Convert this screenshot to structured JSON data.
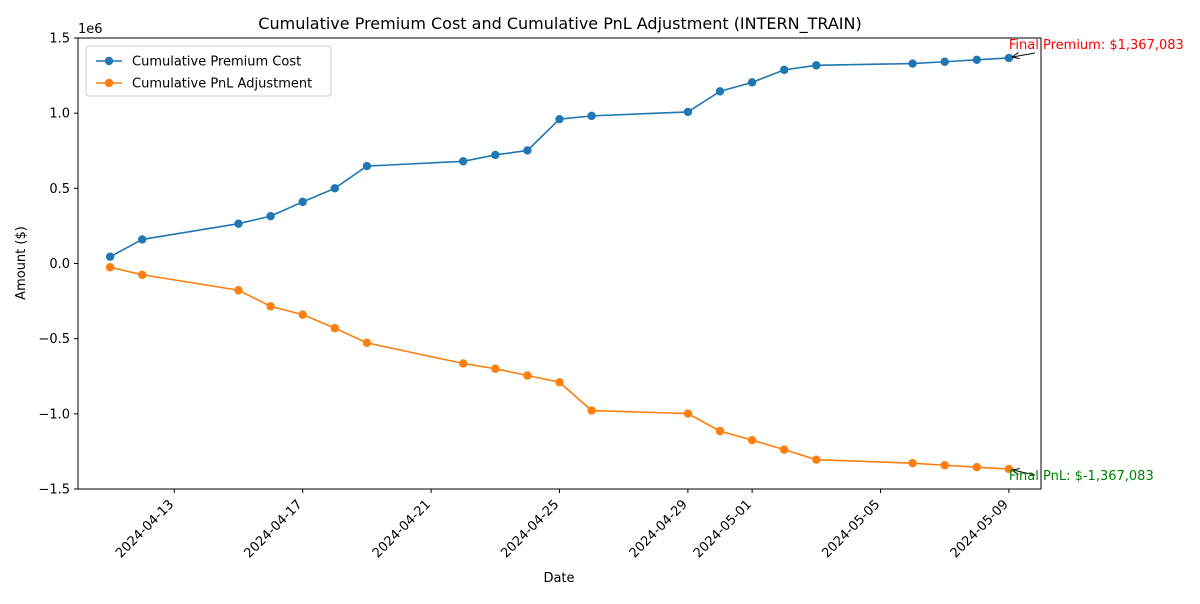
{
  "chart_data": {
    "type": "line",
    "title": "Cumulative Premium Cost and Cumulative PnL Adjustment (INTERN_TRAIN)",
    "xlabel": "Date",
    "ylabel": "Amount ($)",
    "y_scale_label": "1e6",
    "xlim": [
      "2024-04-10",
      "2024-05-10"
    ],
    "ylim": [
      -1500000,
      1500000
    ],
    "x_ticks": [
      "2024-04-13",
      "2024-04-17",
      "2024-04-21",
      "2024-04-25",
      "2024-04-29",
      "2024-05-01",
      "2024-05-05",
      "2024-05-09"
    ],
    "y_ticks": [
      {
        "value": -1500000,
        "label": "−1.5"
      },
      {
        "value": -1000000,
        "label": "−1.0"
      },
      {
        "value": -500000,
        "label": "−0.5"
      },
      {
        "value": 0,
        "label": "0.0"
      },
      {
        "value": 500000,
        "label": "0.5"
      },
      {
        "value": 1000000,
        "label": "1.0"
      },
      {
        "value": 1500000,
        "label": "1.5"
      }
    ],
    "grid": false,
    "legend_position": "top-left",
    "x": [
      "2024-04-11",
      "2024-04-12",
      "2024-04-15",
      "2024-04-16",
      "2024-04-17",
      "2024-04-18",
      "2024-04-19",
      "2024-04-22",
      "2024-04-23",
      "2024-04-24",
      "2024-04-25",
      "2024-04-26",
      "2024-04-29",
      "2024-04-30",
      "2024-05-01",
      "2024-05-02",
      "2024-05-03",
      "2024-05-06",
      "2024-05-07",
      "2024-05-08",
      "2024-05-09"
    ],
    "series": [
      {
        "name": "Cumulative Premium Cost",
        "color": "#1f77b4",
        "values": [
          45000,
          160000,
          265000,
          315000,
          410000,
          500000,
          648000,
          680000,
          722000,
          752000,
          960000,
          982000,
          1008000,
          1145000,
          1205000,
          1288000,
          1318000,
          1330000,
          1342000,
          1355000,
          1367083
        ]
      },
      {
        "name": "Cumulative PnL Adjustment",
        "color": "#ff7f0e",
        "values": [
          -25000,
          -75000,
          -178000,
          -285000,
          -340000,
          -430000,
          -528000,
          -665000,
          -700000,
          -745000,
          -790000,
          -978000,
          -998000,
          -1115000,
          -1175000,
          -1238000,
          -1305000,
          -1328000,
          -1342000,
          -1355000,
          -1367083
        ]
      }
    ],
    "annotations": [
      {
        "text": "Final Premium: $1,367,083",
        "x": "2024-05-09",
        "y": 1367083,
        "color": "#ff0000"
      },
      {
        "text": "Final PnL: $-1,367,083",
        "x": "2024-05-09",
        "y": -1367083,
        "color": "#008000"
      }
    ]
  }
}
